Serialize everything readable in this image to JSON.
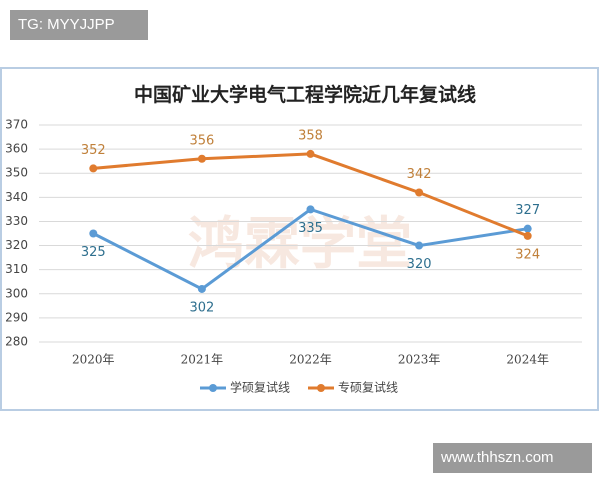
{
  "watermarks": {
    "top_left": "TG: MYYJJPP",
    "bottom_right": "www.thhszn.com",
    "logo": "鸿霖学堂"
  },
  "chart_data": {
    "type": "line",
    "title": "中国矿业大学电气工程学院近几年复试线",
    "categories": [
      "2020年",
      "2021年",
      "2022年",
      "2023年",
      "2024年"
    ],
    "series": [
      {
        "name": "学硕复试线",
        "color": "#5b9bd5",
        "label_color": "#2e6f8e",
        "values": [
          325,
          302,
          335,
          320,
          327
        ]
      },
      {
        "name": "专硕复试线",
        "color": "#e07b2e",
        "label_color": "#c0803a",
        "values": [
          352,
          356,
          358,
          342,
          324
        ]
      }
    ],
    "ylim": [
      280,
      370
    ],
    "yticks": [
      280,
      290,
      300,
      310,
      320,
      330,
      340,
      350,
      360,
      370
    ],
    "grid": true,
    "legend": "bottom"
  }
}
